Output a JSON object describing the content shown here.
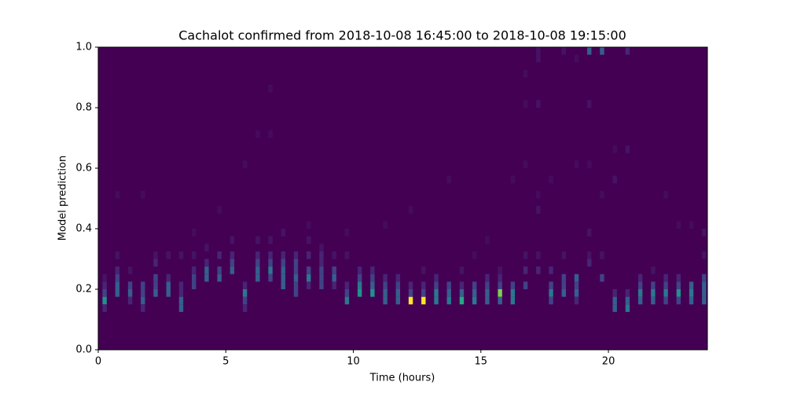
{
  "chart_data": {
    "type": "heatmap",
    "title": "Cachalot confirmed from 2018-10-08 16:45:00 to 2018-10-08 19:15:00",
    "xlabel": "Time (hours)",
    "ylabel": "Model prediction",
    "colormap": "viridis",
    "xlim": [
      0,
      23.88
    ],
    "ylim": [
      0,
      1
    ],
    "xticks": [
      0,
      5,
      10,
      15,
      20
    ],
    "yticks": [
      {
        "value": 0,
        "label": "0.0"
      },
      0.2,
      0.4,
      0.6,
      0.8,
      {
        "value": 1,
        "label": "1.0"
      }
    ],
    "x": [
      0.25,
      0.75,
      1.25,
      1.75,
      2.25,
      2.75,
      3.25,
      3.75,
      4.25,
      4.75,
      5.25,
      5.75,
      6.25,
      6.75,
      7.25,
      7.75,
      8.25,
      8.75,
      9.25,
      9.75,
      10.25,
      10.75,
      11.25,
      11.75,
      12.25,
      12.75,
      13.25,
      13.75,
      14.25,
      14.75,
      15.25,
      15.75,
      16.25,
      16.75,
      17.25,
      17.75,
      18.25,
      18.75,
      19.25,
      19.75,
      20.25,
      20.75,
      21.25,
      21.75,
      22.25,
      22.75,
      23.25,
      23.75
    ],
    "cells": [
      [
        [
          0.15,
          5
        ],
        [
          0.175,
          2
        ],
        [
          0.2,
          1
        ],
        [
          0.125,
          1
        ],
        [
          0.225,
          0.5
        ]
      ],
      [
        [
          0.175,
          3
        ],
        [
          0.2,
          3
        ],
        [
          0.225,
          2
        ],
        [
          0.25,
          1
        ],
        [
          0.3,
          0.5
        ],
        [
          0.5,
          0.3
        ]
      ],
      [
        [
          0.175,
          3
        ],
        [
          0.2,
          2
        ],
        [
          0.15,
          1
        ],
        [
          0.25,
          0.5
        ]
      ],
      [
        [
          0.15,
          3
        ],
        [
          0.175,
          2
        ],
        [
          0.2,
          2
        ],
        [
          0.125,
          1
        ],
        [
          0.5,
          0.3
        ]
      ],
      [
        [
          0.175,
          3
        ],
        [
          0.2,
          2
        ],
        [
          0.225,
          2
        ],
        [
          0.275,
          1
        ],
        [
          0.3,
          0.5
        ]
      ],
      [
        [
          0.175,
          3
        ],
        [
          0.2,
          3
        ],
        [
          0.225,
          1
        ],
        [
          0.3,
          0.5
        ]
      ],
      [
        [
          0.125,
          3
        ],
        [
          0.15,
          3
        ],
        [
          0.175,
          1
        ],
        [
          0.2,
          1
        ],
        [
          0.3,
          0.5
        ]
      ],
      [
        [
          0.2,
          2
        ],
        [
          0.225,
          2
        ],
        [
          0.25,
          1
        ],
        [
          0.3,
          0.5
        ],
        [
          0.375,
          0.3
        ]
      ],
      [
        [
          0.225,
          3
        ],
        [
          0.25,
          3
        ],
        [
          0.275,
          1
        ],
        [
          0.325,
          0.5
        ]
      ],
      [
        [
          0.225,
          3
        ],
        [
          0.25,
          2
        ],
        [
          0.3,
          1
        ],
        [
          0.45,
          0.3
        ]
      ],
      [
        [
          0.25,
          3
        ],
        [
          0.275,
          2
        ],
        [
          0.3,
          1
        ],
        [
          0.35,
          0.5
        ]
      ],
      [
        [
          0.175,
          4
        ],
        [
          0.15,
          2
        ],
        [
          0.2,
          1
        ],
        [
          0.125,
          1
        ],
        [
          0.6,
          0.3
        ]
      ],
      [
        [
          0.225,
          3
        ],
        [
          0.25,
          3
        ],
        [
          0.275,
          2
        ],
        [
          0.3,
          1
        ],
        [
          0.35,
          0.5
        ],
        [
          0.7,
          0.3
        ]
      ],
      [
        [
          0.25,
          4
        ],
        [
          0.225,
          2
        ],
        [
          0.275,
          2
        ],
        [
          0.3,
          1
        ],
        [
          0.35,
          0.5
        ],
        [
          0.7,
          0.3
        ],
        [
          0.85,
          0.3
        ]
      ],
      [
        [
          0.2,
          3
        ],
        [
          0.225,
          3
        ],
        [
          0.25,
          3
        ],
        [
          0.275,
          2
        ],
        [
          0.3,
          1
        ],
        [
          0.375,
          0.5
        ]
      ],
      [
        [
          0.175,
          2
        ],
        [
          0.2,
          2
        ],
        [
          0.225,
          3
        ],
        [
          0.25,
          2
        ],
        [
          0.275,
          2
        ],
        [
          0.3,
          1
        ]
      ],
      [
        [
          0.225,
          4
        ],
        [
          0.25,
          2
        ],
        [
          0.2,
          1
        ],
        [
          0.3,
          1
        ],
        [
          0.35,
          0.5
        ],
        [
          0.4,
          0.3
        ]
      ],
      [
        [
          0.2,
          2
        ],
        [
          0.225,
          2
        ],
        [
          0.25,
          2
        ],
        [
          0.275,
          1
        ],
        [
          0.3,
          1
        ],
        [
          0.325,
          0.5
        ]
      ],
      [
        [
          0.225,
          3
        ],
        [
          0.25,
          2
        ],
        [
          0.2,
          1
        ],
        [
          0.3,
          0.5
        ]
      ],
      [
        [
          0.15,
          4
        ],
        [
          0.175,
          2
        ],
        [
          0.2,
          1
        ],
        [
          0.3,
          0.5
        ],
        [
          0.375,
          0.3
        ]
      ],
      [
        [
          0.175,
          5
        ],
        [
          0.2,
          4
        ],
        [
          0.225,
          2
        ],
        [
          0.25,
          1
        ]
      ],
      [
        [
          0.175,
          5
        ],
        [
          0.2,
          3
        ],
        [
          0.225,
          2
        ],
        [
          0.25,
          1
        ]
      ],
      [
        [
          0.15,
          3
        ],
        [
          0.175,
          3
        ],
        [
          0.2,
          2
        ],
        [
          0.225,
          1
        ],
        [
          0.4,
          0.3
        ]
      ],
      [
        [
          0.15,
          3
        ],
        [
          0.175,
          3
        ],
        [
          0.2,
          2
        ],
        [
          0.225,
          1
        ]
      ],
      [
        [
          0.15,
          10
        ],
        [
          0.175,
          2
        ],
        [
          0.2,
          1
        ],
        [
          0.45,
          0.3
        ]
      ],
      [
        [
          0.15,
          10
        ],
        [
          0.175,
          2
        ],
        [
          0.2,
          1
        ],
        [
          0.25,
          0.5
        ]
      ],
      [
        [
          0.15,
          4
        ],
        [
          0.175,
          4
        ],
        [
          0.2,
          2
        ],
        [
          0.225,
          1
        ]
      ],
      [
        [
          0.15,
          4
        ],
        [
          0.175,
          3
        ],
        [
          0.2,
          2
        ],
        [
          0.55,
          0.3
        ]
      ],
      [
        [
          0.15,
          6
        ],
        [
          0.175,
          3
        ],
        [
          0.2,
          1
        ],
        [
          0.25,
          0.5
        ]
      ],
      [
        [
          0.15,
          4
        ],
        [
          0.175,
          3
        ],
        [
          0.2,
          2
        ],
        [
          0.3,
          0.3
        ]
      ],
      [
        [
          0.15,
          3
        ],
        [
          0.175,
          3
        ],
        [
          0.2,
          2
        ],
        [
          0.225,
          1
        ],
        [
          0.35,
          0.3
        ]
      ],
      [
        [
          0.175,
          8
        ],
        [
          0.15,
          3
        ],
        [
          0.2,
          2
        ],
        [
          0.225,
          1
        ],
        [
          0.25,
          0.5
        ]
      ],
      [
        [
          0.15,
          4
        ],
        [
          0.175,
          4
        ],
        [
          0.2,
          2
        ],
        [
          0.55,
          0.3
        ]
      ],
      [
        [
          0.2,
          2
        ],
        [
          0.25,
          1
        ],
        [
          0.3,
          0.5
        ],
        [
          0.6,
          0.3
        ],
        [
          0.8,
          0.3
        ],
        [
          0.9,
          0.3
        ]
      ],
      [
        [
          0.25,
          1
        ],
        [
          0.3,
          0.5
        ],
        [
          0.45,
          0.5
        ],
        [
          0.5,
          0.3
        ],
        [
          0.8,
          0.5
        ],
        [
          0.95,
          0.5
        ],
        [
          0.975,
          0.5
        ]
      ],
      [
        [
          0.175,
          4
        ],
        [
          0.15,
          2
        ],
        [
          0.2,
          2
        ],
        [
          0.25,
          1
        ],
        [
          0.55,
          0.3
        ]
      ],
      [
        [
          0.175,
          3
        ],
        [
          0.2,
          2
        ],
        [
          0.225,
          2
        ],
        [
          0.3,
          0.5
        ],
        [
          0.975,
          0.5
        ]
      ],
      [
        [
          0.175,
          3
        ],
        [
          0.2,
          2
        ],
        [
          0.225,
          3
        ],
        [
          0.15,
          1
        ],
        [
          0.6,
          0.3
        ],
        [
          0.95,
          0.3
        ]
      ],
      [
        [
          0.275,
          1
        ],
        [
          0.3,
          0.5
        ],
        [
          0.375,
          0.5
        ],
        [
          0.6,
          0.3
        ],
        [
          0.8,
          0.5
        ],
        [
          0.975,
          3
        ]
      ],
      [
        [
          0.225,
          2
        ],
        [
          0.3,
          0.5
        ],
        [
          0.5,
          0.3
        ],
        [
          0.975,
          3
        ]
      ],
      [
        [
          0.125,
          3
        ],
        [
          0.15,
          3
        ],
        [
          0.175,
          1
        ],
        [
          0.55,
          0.5
        ],
        [
          0.65,
          0.3
        ]
      ],
      [
        [
          0.125,
          4
        ],
        [
          0.15,
          3
        ],
        [
          0.175,
          1
        ],
        [
          0.65,
          0.5
        ],
        [
          0.975,
          1
        ]
      ],
      [
        [
          0.175,
          4
        ],
        [
          0.15,
          3
        ],
        [
          0.2,
          2
        ],
        [
          0.225,
          1
        ]
      ],
      [
        [
          0.175,
          4
        ],
        [
          0.15,
          3
        ],
        [
          0.2,
          2
        ],
        [
          0.25,
          0.5
        ]
      ],
      [
        [
          0.175,
          4
        ],
        [
          0.15,
          2
        ],
        [
          0.2,
          2
        ],
        [
          0.225,
          1
        ],
        [
          0.5,
          0.3
        ]
      ],
      [
        [
          0.175,
          5
        ],
        [
          0.2,
          2
        ],
        [
          0.15,
          2
        ],
        [
          0.225,
          1
        ],
        [
          0.4,
          0.3
        ]
      ],
      [
        [
          0.175,
          4
        ],
        [
          0.15,
          3
        ],
        [
          0.2,
          3
        ],
        [
          0.4,
          0.3
        ]
      ],
      [
        [
          0.175,
          3
        ],
        [
          0.15,
          3
        ],
        [
          0.2,
          3
        ],
        [
          0.225,
          2
        ],
        [
          0.3,
          0.5
        ],
        [
          0.375,
          0.5
        ]
      ]
    ]
  }
}
